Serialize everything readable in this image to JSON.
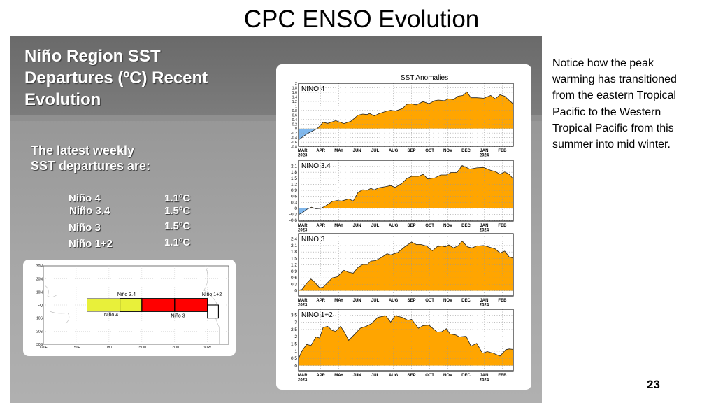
{
  "slide": {
    "title": "CPC ENSO Evolution",
    "page_number": "23"
  },
  "left_panel": {
    "title_lines": [
      "Niño Region SST",
      "Departures (ºC) Recent",
      "Evolution"
    ],
    "latest_lines": [
      "The latest weekly",
      "SST departures are:"
    ],
    "regions": [
      {
        "name": "Niño 4",
        "value": "1.1ºC"
      },
      {
        "name": "Niño 3.4",
        "value": "1.5ºC"
      },
      {
        "name": "Niño 3",
        "value": "1.5ºC"
      },
      {
        "name": "Niño 1+2",
        "value": "1.1ºC"
      }
    ]
  },
  "notice_lines": [
    "Notice how the peak",
    "warming has transitioned",
    "from the eastern Tropical",
    "Pacific to the Western",
    "Tropical Pacific from this",
    "summer into mid winter."
  ],
  "map": {
    "lat_labels": [
      "30N",
      "20N",
      "10N",
      "EQ",
      "10S",
      "20S",
      "30S"
    ],
    "lon_labels": [
      "120E",
      "150E",
      "180",
      "150W",
      "120W",
      "90W"
    ],
    "region_labels": {
      "nino4": "Niño 4",
      "nino34": "Niño 3.4",
      "nino3": "Niño 3",
      "nino12": "Niño 1+2"
    },
    "colors": {
      "nino4": "#e8f03a",
      "nino3": "#ff0000"
    }
  },
  "chart_data": {
    "type": "area",
    "title": "SST Anomalies",
    "x_unit": "months since 1 Mar 2023",
    "xlim": [
      -0.22,
      11.6
    ],
    "month_labels": [
      "MAR",
      "APR",
      "MAY",
      "JUN",
      "JUL",
      "AUG",
      "SEP",
      "OCT",
      "NOV",
      "DEC",
      "JAN",
      "FEB"
    ],
    "year_labels": {
      "0": "2023",
      "10": "2024"
    },
    "positive_color": "#ffa500",
    "negative_color": "#7fb8ee",
    "grid": true,
    "panels": [
      {
        "name": "NINO 4",
        "ylim": [
          -0.78,
          2.0
        ],
        "yticks": [
          "2",
          "1.8",
          "1.6",
          "1.4",
          "1.2",
          "1",
          "0.8",
          "0.6",
          "0.4",
          "0.2",
          "0",
          "-0.2",
          "-0.4",
          "-0.6",
          "-0.8"
        ],
        "points": [
          [
            -0.22,
            -0.5
          ],
          [
            0.23,
            -0.24
          ],
          [
            0.81,
            0
          ],
          [
            1.13,
            0.28
          ],
          [
            1.38,
            0.23
          ],
          [
            1.83,
            0.35
          ],
          [
            2.28,
            0.22
          ],
          [
            2.67,
            0.33
          ],
          [
            3.05,
            0.59
          ],
          [
            3.31,
            0.64
          ],
          [
            3.56,
            0.62
          ],
          [
            3.69,
            0.67
          ],
          [
            3.95,
            0.56
          ],
          [
            4.21,
            0.66
          ],
          [
            4.59,
            0.76
          ],
          [
            4.85,
            0.81
          ],
          [
            5.1,
            0.77
          ],
          [
            5.49,
            0.88
          ],
          [
            5.74,
            1.07
          ],
          [
            6.0,
            1.09
          ],
          [
            6.26,
            1.05
          ],
          [
            6.64,
            1.19
          ],
          [
            6.96,
            1.1
          ],
          [
            7.28,
            1.23
          ],
          [
            7.47,
            1.26
          ],
          [
            7.8,
            1.23
          ],
          [
            8.05,
            1.31
          ],
          [
            8.31,
            1.28
          ],
          [
            8.56,
            1.43
          ],
          [
            8.82,
            1.46
          ],
          [
            9.05,
            1.62
          ],
          [
            9.27,
            1.36
          ],
          [
            9.59,
            1.36
          ],
          [
            9.97,
            1.34
          ],
          [
            10.36,
            1.46
          ],
          [
            10.62,
            1.31
          ],
          [
            10.87,
            1.49
          ],
          [
            11.13,
            1.43
          ],
          [
            11.38,
            1.24
          ],
          [
            11.58,
            1.1
          ]
        ]
      },
      {
        "name": "NINO 3.4",
        "ylim": [
          -0.63,
          2.4
        ],
        "yticks": [
          "2.1",
          "1.8",
          "1.5",
          "1.2",
          "0.9",
          "0.6",
          "0.3",
          "0",
          "-0.3",
          "-0.6"
        ],
        "points": [
          [
            -0.22,
            -0.31
          ],
          [
            -0.03,
            -0.23
          ],
          [
            0.23,
            -0.05
          ],
          [
            0.49,
            0.06
          ],
          [
            0.74,
            -0.02
          ],
          [
            1.0,
            0
          ],
          [
            1.26,
            0.12
          ],
          [
            1.64,
            0.35
          ],
          [
            1.9,
            0.39
          ],
          [
            2.15,
            0.37
          ],
          [
            2.54,
            0.47
          ],
          [
            2.79,
            0.37
          ],
          [
            3.05,
            0.79
          ],
          [
            3.31,
            0.93
          ],
          [
            3.56,
            0.91
          ],
          [
            3.76,
            1.0
          ],
          [
            3.95,
            0.93
          ],
          [
            4.21,
            1.03
          ],
          [
            4.59,
            1.09
          ],
          [
            4.85,
            1.14
          ],
          [
            5.1,
            1.05
          ],
          [
            5.49,
            1.26
          ],
          [
            5.74,
            1.49
          ],
          [
            6.0,
            1.6
          ],
          [
            6.38,
            1.6
          ],
          [
            6.64,
            1.7
          ],
          [
            6.9,
            1.47
          ],
          [
            7.28,
            1.52
          ],
          [
            7.6,
            1.67
          ],
          [
            7.92,
            1.67
          ],
          [
            8.18,
            1.79
          ],
          [
            8.5,
            1.79
          ],
          [
            8.79,
            2.14
          ],
          [
            9.21,
            1.96
          ],
          [
            9.59,
            2.02
          ],
          [
            9.97,
            2.04
          ],
          [
            10.36,
            1.9
          ],
          [
            10.62,
            1.84
          ],
          [
            10.87,
            1.7
          ],
          [
            11.13,
            1.82
          ],
          [
            11.38,
            1.7
          ],
          [
            11.58,
            1.49
          ]
        ]
      },
      {
        "name": "NINO 3",
        "ylim": [
          -0.24,
          2.65
        ],
        "yticks": [
          "2.4",
          "2.1",
          "1.8",
          "1.5",
          "1.2",
          "0.9",
          "0.6",
          "0.3",
          "0"
        ],
        "points": [
          [
            -0.22,
            0.03
          ],
          [
            -0.03,
            0.06
          ],
          [
            0.23,
            0.35
          ],
          [
            0.46,
            0.55
          ],
          [
            0.68,
            0.39
          ],
          [
            0.94,
            0.14
          ],
          [
            1.13,
            0.17
          ],
          [
            1.64,
            0.6
          ],
          [
            1.9,
            0.65
          ],
          [
            2.28,
            0.95
          ],
          [
            2.54,
            0.86
          ],
          [
            2.79,
            0.82
          ],
          [
            3.05,
            1.08
          ],
          [
            3.31,
            1.22
          ],
          [
            3.56,
            1.22
          ],
          [
            3.76,
            1.38
          ],
          [
            4.01,
            1.4
          ],
          [
            4.33,
            1.54
          ],
          [
            4.65,
            1.72
          ],
          [
            4.85,
            1.67
          ],
          [
            5.23,
            1.77
          ],
          [
            5.62,
            2.04
          ],
          [
            6.0,
            2.26
          ],
          [
            6.26,
            2.15
          ],
          [
            6.51,
            2.15
          ],
          [
            6.83,
            2.08
          ],
          [
            7.15,
            1.86
          ],
          [
            7.41,
            2.05
          ],
          [
            7.67,
            2.08
          ],
          [
            7.86,
            2.04
          ],
          [
            8.05,
            2.13
          ],
          [
            8.31,
            1.99
          ],
          [
            8.56,
            2.08
          ],
          [
            8.79,
            2.31
          ],
          [
            9.08,
            2.04
          ],
          [
            9.33,
            1.99
          ],
          [
            9.59,
            2.08
          ],
          [
            9.97,
            2.1
          ],
          [
            10.23,
            2.04
          ],
          [
            10.62,
            1.94
          ],
          [
            10.87,
            1.75
          ],
          [
            11.13,
            1.84
          ],
          [
            11.38,
            1.57
          ],
          [
            11.58,
            1.52
          ]
        ]
      },
      {
        "name": "NINO 1+2",
        "ylim": [
          -0.36,
          3.9
        ],
        "yticks": [
          "3.5",
          "3",
          "2.5",
          "2",
          "1.5",
          "1",
          "0.5",
          "0"
        ],
        "points": [
          [
            -0.22,
            0.49
          ],
          [
            -0.03,
            1.02
          ],
          [
            0.23,
            1.47
          ],
          [
            0.46,
            1.39
          ],
          [
            0.74,
            1.99
          ],
          [
            0.94,
            1.91
          ],
          [
            1.13,
            2.64
          ],
          [
            1.38,
            2.72
          ],
          [
            1.64,
            2.43
          ],
          [
            1.83,
            2.37
          ],
          [
            2.09,
            2.72
          ],
          [
            2.28,
            2.37
          ],
          [
            2.54,
            1.75
          ],
          [
            2.79,
            2.07
          ],
          [
            3.18,
            2.59
          ],
          [
            3.5,
            2.72
          ],
          [
            3.82,
            2.92
          ],
          [
            4.14,
            3.34
          ],
          [
            4.59,
            3.45
          ],
          [
            4.85,
            3.01
          ],
          [
            5.1,
            3.45
          ],
          [
            5.49,
            3.34
          ],
          [
            5.81,
            3.13
          ],
          [
            6.0,
            3.21
          ],
          [
            6.38,
            2.59
          ],
          [
            6.64,
            2.77
          ],
          [
            6.96,
            2.8
          ],
          [
            7.41,
            2.32
          ],
          [
            7.67,
            2.35
          ],
          [
            7.92,
            2.56
          ],
          [
            8.12,
            2.19
          ],
          [
            8.44,
            2.12
          ],
          [
            8.63,
            1.99
          ],
          [
            9.01,
            2.03
          ],
          [
            9.27,
            1.35
          ],
          [
            9.59,
            1.54
          ],
          [
            9.91,
            0.86
          ],
          [
            10.17,
            0.97
          ],
          [
            10.49,
            0.86
          ],
          [
            10.87,
            0.66
          ],
          [
            11.19,
            1.1
          ],
          [
            11.38,
            1.15
          ],
          [
            11.58,
            1.12
          ]
        ]
      }
    ]
  }
}
